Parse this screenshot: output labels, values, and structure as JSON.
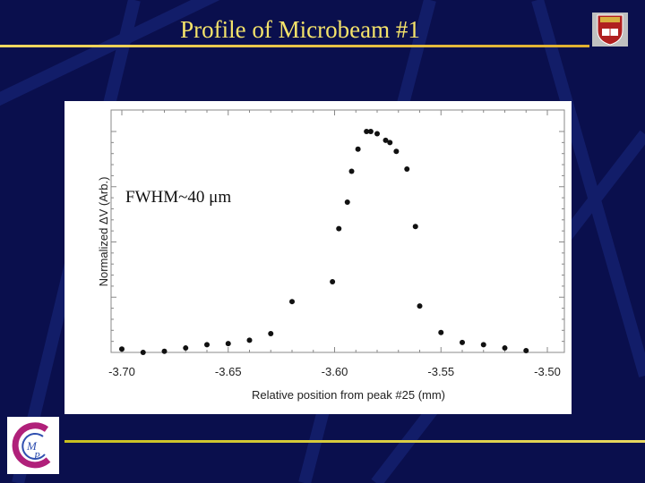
{
  "slide": {
    "title": "Profile of Microbeam #1",
    "background": "#0a0f4d",
    "title_color": "#f5e36a"
  },
  "crest": {
    "name": "university-crest-icon"
  },
  "logo": {
    "name": "cmp-logo-icon",
    "letters": "CMP"
  },
  "chart_data": {
    "type": "scatter",
    "xlabel": "Relative position from peak #25 (mm)",
    "ylabel": "Normalized ΔV (Arb.)",
    "annotation": "FWHM~40 μm",
    "xlim": [
      -3.7,
      -3.5
    ],
    "ylim": [
      0,
      1
    ],
    "xticks": [
      -3.7,
      -3.65,
      -3.6,
      -3.55,
      -3.5
    ],
    "xtick_labels": [
      "-3.70",
      "-3.65",
      "-3.60",
      "-3.55",
      "-3.50"
    ],
    "grid": false,
    "series": [
      {
        "x": [
          -3.7,
          -3.69,
          -3.68,
          -3.67,
          -3.66,
          -3.65,
          -3.64,
          -3.63,
          -3.62,
          -3.601,
          -3.598,
          -3.594,
          -3.592,
          -3.589,
          -3.585,
          -3.583,
          -3.58,
          -3.576,
          -3.574,
          -3.571,
          -3.566,
          -3.562,
          -3.56,
          -3.55,
          -3.54,
          -3.53,
          -3.52,
          -3.51
        ],
        "y": [
          0.015,
          0.0,
          0.005,
          0.02,
          0.035,
          0.04,
          0.055,
          0.085,
          0.23,
          0.32,
          0.56,
          0.68,
          0.82,
          0.92,
          1.0,
          1.0,
          0.99,
          0.96,
          0.95,
          0.91,
          0.83,
          0.57,
          0.21,
          0.09,
          0.045,
          0.035,
          0.02,
          0.008
        ]
      }
    ]
  }
}
